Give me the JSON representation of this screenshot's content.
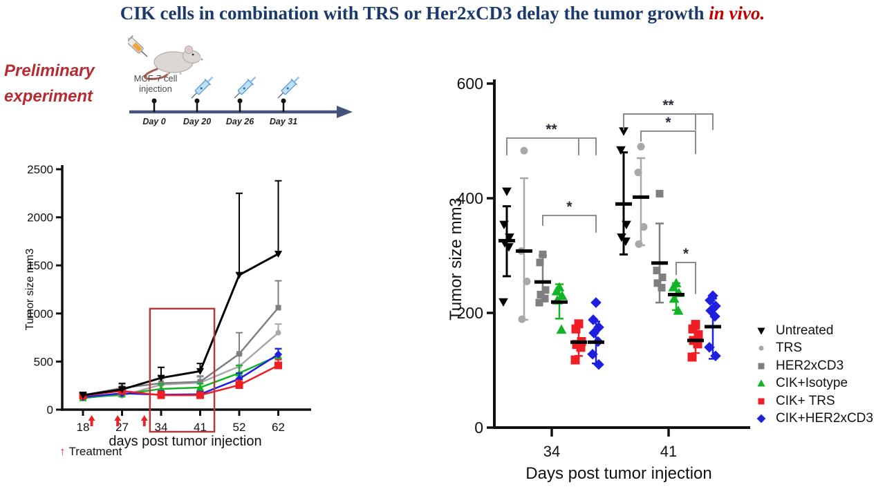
{
  "title": {
    "text": "CIK cells in combination with TRS or Her2xCD3 delay the tumor growth ",
    "emphasis": "in vivo."
  },
  "preliminary_label": {
    "line1": "Preliminary",
    "line2": "experiment"
  },
  "timeline": {
    "injection_label_line1": "MCF-7 cell",
    "injection_label_line2": "injection",
    "days": [
      {
        "label": "Day 0"
      },
      {
        "label": "Day 20"
      },
      {
        "label": "Day 26"
      },
      {
        "label": "Day 31"
      }
    ],
    "arrow_color": "#46527e"
  },
  "treatment_note": {
    "arrow": "↑",
    "label": "Treatment"
  },
  "legend": {
    "items": [
      {
        "label": "Untreated",
        "marker": "triangle-down",
        "color": "#000000"
      },
      {
        "label": "TRS",
        "marker": "circle",
        "color": "#a8a8a8"
      },
      {
        "label": "HER2xCD3",
        "marker": "square",
        "color": "#7f7f7f"
      },
      {
        "label": "CIK+Isotype",
        "marker": "triangle-up",
        "color": "#12b425"
      },
      {
        "label": "CIK+ TRS",
        "marker": "square",
        "color": "#ee1e24"
      },
      {
        "label": "CIK+HER2xCD3",
        "marker": "diamond",
        "color": "#1f1fe0"
      }
    ]
  },
  "chart_data": [
    {
      "type": "line",
      "title": "",
      "ylabel": "Tumor size mm3",
      "xlabel": "days post tumor injection",
      "categories": [
        18,
        27,
        34,
        41,
        52,
        62
      ],
      "ylim": [
        0,
        2500
      ],
      "yticks": [
        0,
        500,
        1000,
        1500,
        2000,
        2500
      ],
      "grid": false,
      "treatment_days": [
        20,
        26,
        31
      ],
      "treatment_color": "#e8232a",
      "highlight_box": {
        "day_from": 32,
        "day_to": 45,
        "y_top": 1050,
        "color": "#b03a37"
      },
      "series": [
        {
          "name": "Untreated",
          "color": "#000000",
          "marker": "triangle-down",
          "values": [
            150,
            210,
            330,
            400,
            1400,
            1620
          ],
          "err": [
            30,
            60,
            110,
            80,
            850,
            760
          ]
        },
        {
          "name": "TRS",
          "color": "#a8a8a8",
          "marker": "circle",
          "values": [
            140,
            145,
            260,
            280,
            450,
            800
          ],
          "err": [
            20,
            40,
            60,
            60,
            130,
            90
          ]
        },
        {
          "name": "HER2xCD3",
          "color": "#7f7f7f",
          "marker": "square",
          "values": [
            150,
            225,
            275,
            290,
            580,
            1060
          ],
          "err": [
            25,
            50,
            70,
            60,
            220,
            280
          ]
        },
        {
          "name": "CIK+Isotype",
          "color": "#12b425",
          "marker": "triangle-up",
          "values": [
            120,
            160,
            215,
            230,
            380,
            560
          ],
          "err": [
            20,
            30,
            50,
            40,
            80,
            70
          ]
        },
        {
          "name": "CIK+ TRS",
          "color": "#ee1e24",
          "marker": "square",
          "values": [
            145,
            195,
            150,
            150,
            255,
            460
          ],
          "err": [
            20,
            35,
            40,
            30,
            50,
            60
          ]
        },
        {
          "name": "CIK+HER2xCD3",
          "color": "#1f1fe0",
          "marker": "diamond",
          "values": [
            130,
            170,
            155,
            160,
            320,
            575
          ],
          "err": [
            20,
            30,
            40,
            30,
            60,
            60
          ]
        }
      ]
    },
    {
      "type": "scatter",
      "title": "",
      "ylabel": "Tumor size mm3",
      "xlabel": "Days post tumor injection",
      "categories": [
        "34",
        "41"
      ],
      "ylim": [
        0,
        600
      ],
      "yticks": [
        0,
        200,
        400,
        600
      ],
      "grid": false,
      "series": [
        {
          "name": "Untreated",
          "color": "#000000",
          "marker": "triangle-down",
          "size": 11,
          "points": [
            [
              412,
              354,
              332,
              322,
              315,
              219
            ],
            [
              517,
              484,
              354,
              332,
              325
            ]
          ],
          "mean": [
            326,
            390
          ],
          "hi": [
            386,
            480
          ],
          "lo": [
            264,
            302
          ]
        },
        {
          "name": "TRS",
          "color": "#a8a8a8",
          "marker": "circle",
          "size": 11,
          "points": [
            [
              483,
              308,
              255,
              189
            ],
            [
              490,
              445,
              350,
              320
            ]
          ],
          "mean": [
            308,
            402
          ],
          "hi": [
            435,
            470
          ],
          "lo": [
            188,
            318
          ]
        },
        {
          "name": "HER2xCD3",
          "color": "#7f7f7f",
          "marker": "square",
          "size": 11,
          "points": [
            [
              302,
              288,
              240,
              232,
              225,
              218
            ],
            [
              408,
              274,
              262,
              252,
              244
            ]
          ],
          "mean": [
            254,
            287
          ],
          "hi": [
            300,
            356
          ],
          "lo": [
            220,
            218
          ]
        },
        {
          "name": "CIK+Isotype",
          "color": "#12b425",
          "marker": "triangle-up",
          "size": 12,
          "points": [
            [
              245,
              238,
              230,
              222,
              171
            ],
            [
              252,
              245,
              235,
              225,
              204
            ]
          ],
          "mean": [
            219,
            232
          ],
          "hi": [
            250,
            252
          ],
          "lo": [
            190,
            205
          ]
        },
        {
          "name": "CIK+ TRS",
          "color": "#ee1e24",
          "marker": "square",
          "size": 13,
          "points": [
            [
              181,
              172,
              150,
              145,
              140,
              118
            ],
            [
              180,
              172,
              162,
              152,
              146,
              123
            ]
          ],
          "mean": [
            149,
            152
          ],
          "hi": [
            175,
            172
          ],
          "lo": [
            125,
            130
          ]
        },
        {
          "name": "CIK+HER2xCD3",
          "color": "#1f1fe0",
          "marker": "diamond",
          "size": 11,
          "points": [
            [
              218,
              188,
              175,
              165,
              150,
              128,
              110
            ],
            [
              230,
              222,
              212,
              204,
              194,
              140,
              125
            ]
          ],
          "mean": [
            149,
            176
          ],
          "hi": [
            185,
            225
          ],
          "lo": [
            112,
            120
          ]
        }
      ],
      "annotations": [
        {
          "cat": 0,
          "g1": 0,
          "g2": 5,
          "extra": 4,
          "y": 505,
          "d1": 30,
          "d2": 30,
          "label": "**"
        },
        {
          "cat": 0,
          "g1": 2,
          "g2": 5,
          "extra": null,
          "y": 370,
          "d1": 18,
          "d2": 30,
          "label": "*"
        },
        {
          "cat": 1,
          "g1": 0,
          "g2": 5,
          "extra": 4,
          "y": 547,
          "d1": 28,
          "d2": 28,
          "label": "**"
        },
        {
          "cat": 1,
          "g1": 1,
          "g2": 4,
          "extra": null,
          "y": 517,
          "d1": 18,
          "d2": 40,
          "label": "*"
        },
        {
          "cat": 1,
          "g1": 3,
          "g2": 4,
          "extra": null,
          "y": 288,
          "d1": 22,
          "d2": 55,
          "label": "*"
        }
      ]
    }
  ]
}
